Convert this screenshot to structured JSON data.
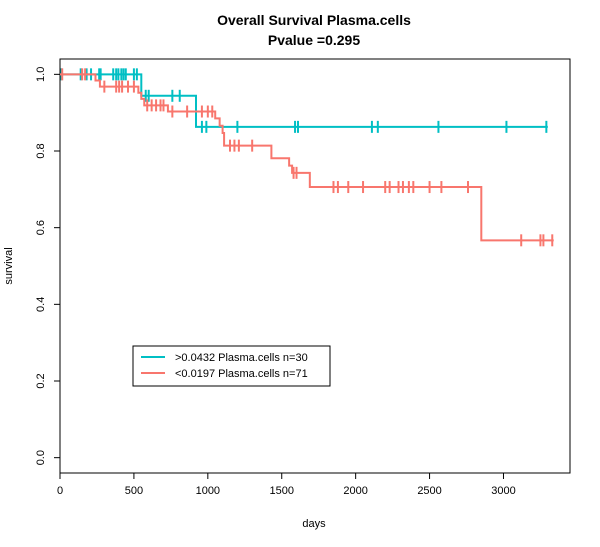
{
  "chart_data": {
    "type": "line",
    "subtype": "kaplan-meier",
    "title": [
      "Overall Survival Plasma.cells",
      "Pvalue =0.295"
    ],
    "xlabel": "days",
    "ylabel": "survival",
    "xlim": [
      0,
      3450
    ],
    "ylim": [
      -0.04,
      1.04
    ],
    "xticks": [
      0,
      500,
      1000,
      1500,
      2000,
      2500,
      3000
    ],
    "yticks": [
      0.0,
      0.2,
      0.4,
      0.6,
      0.8,
      1.0
    ],
    "xtick_labels": [
      "0",
      "500",
      "1000",
      "1500",
      "2000",
      "2500",
      "3000"
    ],
    "ytick_labels": [
      "0.0",
      "0.2",
      "0.4",
      "0.6",
      "0.8",
      "1.0"
    ],
    "legend_position": "lower-left",
    "series": [
      {
        "name": ">0.0432 Plasma.cells n=30",
        "color": "#00BFC4",
        "steps": [
          [
            0,
            1.0
          ],
          [
            550,
            0.944
          ],
          [
            920,
            0.863
          ],
          [
            3300,
            0.863
          ]
        ],
        "censors": [
          [
            10,
            1.0
          ],
          [
            140,
            1.0
          ],
          [
            180,
            1.0
          ],
          [
            210,
            1.0
          ],
          [
            265,
            1.0
          ],
          [
            275,
            1.0
          ],
          [
            360,
            1.0
          ],
          [
            380,
            1.0
          ],
          [
            395,
            1.0
          ],
          [
            415,
            1.0
          ],
          [
            430,
            1.0
          ],
          [
            445,
            1.0
          ],
          [
            500,
            1.0
          ],
          [
            520,
            1.0
          ],
          [
            580,
            0.944
          ],
          [
            600,
            0.944
          ],
          [
            760,
            0.944
          ],
          [
            810,
            0.944
          ],
          [
            960,
            0.863
          ],
          [
            990,
            0.863
          ],
          [
            1200,
            0.863
          ],
          [
            1590,
            0.863
          ],
          [
            1610,
            0.863
          ],
          [
            2110,
            0.863
          ],
          [
            2150,
            0.863
          ],
          [
            2560,
            0.863
          ],
          [
            3020,
            0.863
          ],
          [
            3290,
            0.863
          ]
        ]
      },
      {
        "name": "<0.0197 Plasma.cells n=71",
        "color": "#F8766D",
        "steps": [
          [
            0,
            1.0
          ],
          [
            240,
            0.984
          ],
          [
            270,
            0.968
          ],
          [
            530,
            0.952
          ],
          [
            550,
            0.936
          ],
          [
            570,
            0.919
          ],
          [
            730,
            0.903
          ],
          [
            1050,
            0.885
          ],
          [
            1080,
            0.866
          ],
          [
            1100,
            0.847
          ],
          [
            1110,
            0.814
          ],
          [
            1430,
            0.781
          ],
          [
            1550,
            0.762
          ],
          [
            1570,
            0.743
          ],
          [
            1690,
            0.706
          ],
          [
            2850,
            0.567
          ],
          [
            3340,
            0.567
          ]
        ],
        "censors": [
          [
            15,
            1.0
          ],
          [
            150,
            1.0
          ],
          [
            170,
            1.0
          ],
          [
            300,
            0.968
          ],
          [
            380,
            0.968
          ],
          [
            400,
            0.968
          ],
          [
            420,
            0.968
          ],
          [
            460,
            0.968
          ],
          [
            500,
            0.968
          ],
          [
            590,
            0.919
          ],
          [
            620,
            0.919
          ],
          [
            650,
            0.919
          ],
          [
            680,
            0.919
          ],
          [
            700,
            0.919
          ],
          [
            760,
            0.903
          ],
          [
            860,
            0.903
          ],
          [
            960,
            0.903
          ],
          [
            1000,
            0.903
          ],
          [
            1030,
            0.903
          ],
          [
            1150,
            0.814
          ],
          [
            1180,
            0.814
          ],
          [
            1210,
            0.814
          ],
          [
            1300,
            0.814
          ],
          [
            1580,
            0.743
          ],
          [
            1600,
            0.743
          ],
          [
            1850,
            0.706
          ],
          [
            1880,
            0.706
          ],
          [
            1950,
            0.706
          ],
          [
            2050,
            0.706
          ],
          [
            2200,
            0.706
          ],
          [
            2230,
            0.706
          ],
          [
            2290,
            0.706
          ],
          [
            2320,
            0.706
          ],
          [
            2360,
            0.706
          ],
          [
            2390,
            0.706
          ],
          [
            2500,
            0.706
          ],
          [
            2580,
            0.706
          ],
          [
            2760,
            0.706
          ],
          [
            3120,
            0.567
          ],
          [
            3250,
            0.567
          ],
          [
            3270,
            0.567
          ],
          [
            3330,
            0.567
          ]
        ]
      }
    ]
  }
}
